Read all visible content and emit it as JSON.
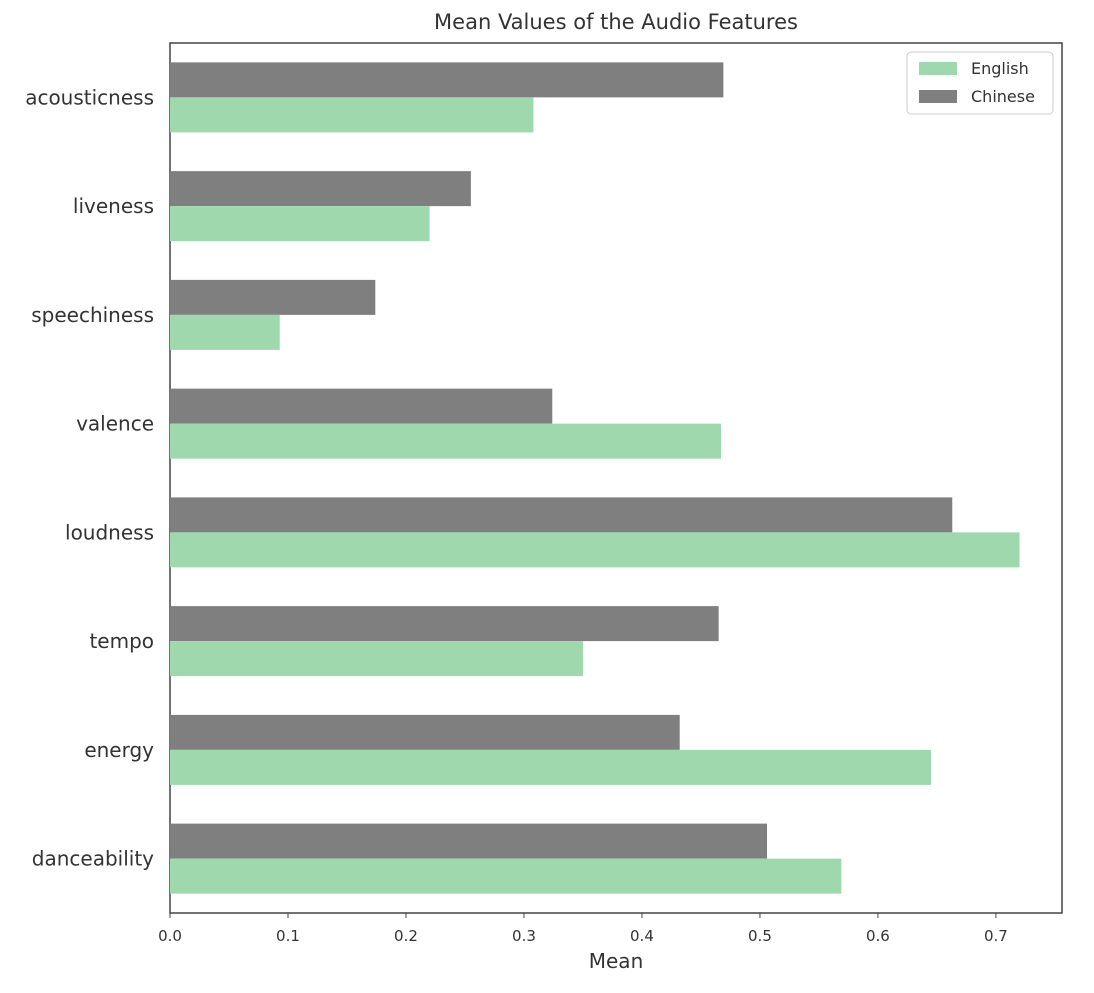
{
  "chart_data": {
    "type": "bar",
    "orientation": "horizontal",
    "title": "Mean Values of the Audio Features",
    "xlabel": "Mean",
    "ylabel": "",
    "xlim": [
      0,
      0.756
    ],
    "xticks": [
      "0.0",
      "0.1",
      "0.2",
      "0.3",
      "0.4",
      "0.5",
      "0.6",
      "0.7"
    ],
    "categories": [
      "danceability",
      "energy",
      "tempo",
      "loudness",
      "valence",
      "speechiness",
      "liveness",
      "acousticness"
    ],
    "series": [
      {
        "name": "English",
        "color": "#9fd8ad",
        "values": [
          0.569,
          0.645,
          0.35,
          0.72,
          0.467,
          0.093,
          0.22,
          0.308
        ]
      },
      {
        "name": "Chinese",
        "color": "#7f7f7f",
        "values": [
          0.506,
          0.432,
          0.465,
          0.663,
          0.324,
          0.174,
          0.255,
          0.469
        ]
      }
    ],
    "grid": false,
    "legend_position": "top-right"
  }
}
